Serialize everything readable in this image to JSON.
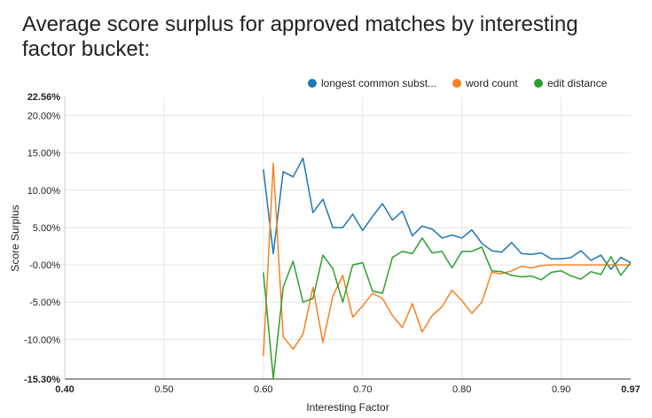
{
  "chart_data": {
    "type": "line",
    "title": "Average score surplus for approved matches by interesting factor bucket:",
    "xlabel": "Interesting Factor",
    "ylabel": "Score Surplus",
    "xlim": [
      0.4,
      0.97
    ],
    "ylim": [
      -15.3,
      22.56
    ],
    "x_ticks": [
      "0.40",
      "0.50",
      "0.60",
      "0.70",
      "0.80",
      "0.90",
      "0.97"
    ],
    "y_ticks": [
      "-15.30%",
      "-10.00%",
      "-5.00%",
      "-0.00%",
      "5.00%",
      "10.00%",
      "15.00%",
      "20.00%",
      "22.56%"
    ],
    "legend_position": "top-right",
    "x": [
      0.6,
      0.61,
      0.62,
      0.63,
      0.64,
      0.65,
      0.66,
      0.67,
      0.68,
      0.69,
      0.7,
      0.71,
      0.72,
      0.73,
      0.74,
      0.75,
      0.76,
      0.77,
      0.78,
      0.79,
      0.8,
      0.81,
      0.82,
      0.83,
      0.84,
      0.85,
      0.86,
      0.87,
      0.88,
      0.89,
      0.9,
      0.91,
      0.92,
      0.93,
      0.94,
      0.95,
      0.96,
      0.97
    ],
    "series": [
      {
        "name": "longest common subst...",
        "color": "#1f77b4",
        "values": [
          12.8,
          1.5,
          12.5,
          11.8,
          14.3,
          7.0,
          8.8,
          5.0,
          5.0,
          6.8,
          4.6,
          6.5,
          8.2,
          6.0,
          7.2,
          3.9,
          5.2,
          4.8,
          3.6,
          4.0,
          3.6,
          4.7,
          2.9,
          1.9,
          1.7,
          3.0,
          1.5,
          1.4,
          1.6,
          0.8,
          0.8,
          1.0,
          1.9,
          0.6,
          1.3,
          -0.6,
          1.0,
          0.3
        ]
      },
      {
        "name": "word count",
        "color": "#f58220",
        "values": [
          -12.2,
          13.6,
          -9.6,
          -11.3,
          -9.3,
          -3.0,
          -10.4,
          -4.2,
          -1.4,
          -7.0,
          -5.5,
          -3.8,
          -4.5,
          -6.8,
          -8.4,
          -5.2,
          -9.0,
          -6.8,
          -5.6,
          -3.4,
          -4.8,
          -6.5,
          -5.0,
          -1.0,
          -1.2,
          -0.8,
          -0.2,
          -0.4,
          -0.1,
          0.0,
          0.0,
          0.0,
          0.0,
          0.0,
          0.0,
          0.0,
          0.0,
          0.0
        ]
      },
      {
        "name": "edit distance",
        "color": "#2ca02c",
        "values": [
          -1.0,
          -15.2,
          -3.0,
          0.5,
          -5.0,
          -4.5,
          1.3,
          -0.5,
          -5.0,
          -0.0,
          0.3,
          -3.5,
          -3.8,
          1.0,
          1.8,
          1.5,
          3.6,
          1.6,
          1.8,
          -0.4,
          1.8,
          1.8,
          2.4,
          -0.8,
          -0.9,
          -1.4,
          -1.6,
          -1.5,
          -2.0,
          -1.0,
          -0.8,
          -1.5,
          -1.9,
          -0.9,
          -1.3,
          1.1,
          -1.4,
          0.3
        ]
      }
    ]
  }
}
